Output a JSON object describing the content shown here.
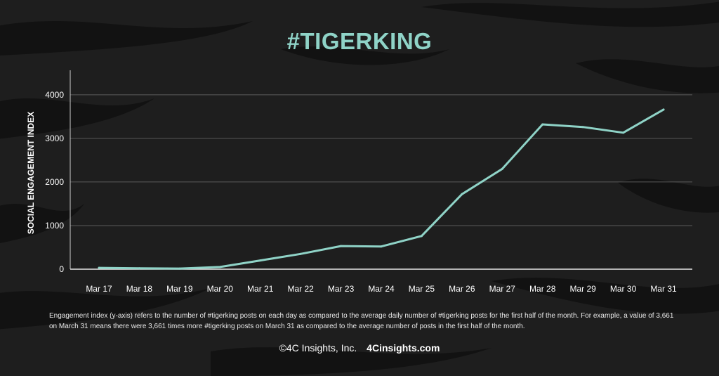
{
  "colors": {
    "accent": "#8fd3c7",
    "background": "#1e1e1e",
    "stripe": "#0f0f0f",
    "text": "#ffffff",
    "grid": "#5a5a5a"
  },
  "chart_data": {
    "type": "line",
    "title": "#TIGERKING",
    "ylabel": "SOCIAL ENGAGEMENT INDEX",
    "xlabel": "",
    "categories": [
      "Mar 17",
      "Mar 18",
      "Mar 19",
      "Mar 20",
      "Mar 21",
      "Mar 22",
      "Mar 23",
      "Mar 24",
      "Mar 25",
      "Mar 26",
      "Mar 27",
      "Mar 28",
      "Mar 29",
      "Mar 30",
      "Mar 31"
    ],
    "values": [
      30,
      20,
      15,
      50,
      200,
      350,
      530,
      520,
      760,
      1720,
      2300,
      3320,
      3260,
      3130,
      3661
    ],
    "yticks": [
      0,
      1000,
      2000,
      3000,
      4000
    ],
    "ylim": [
      0,
      4400
    ],
    "grid": true,
    "legend": "none"
  },
  "note": "Engagement index (y-axis) refers to the number of #tigerking posts on each day as compared to the average daily number of #tigerking posts for the first half of the month.  For example, a value of 3,661 on March 31 means there were 3,661 times more #tigerking posts on March 31 as compared to the average number of posts in the first half of the month.",
  "footer": {
    "copyright": "©4C Insights, Inc.",
    "site": "4Cinsights.com"
  }
}
